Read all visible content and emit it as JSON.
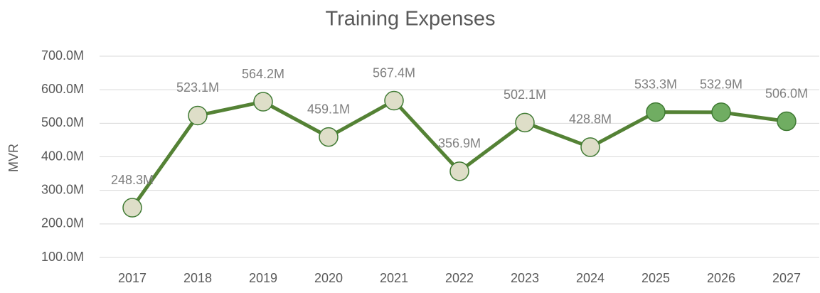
{
  "chart_data": {
    "type": "line",
    "title": "Training Expenses",
    "y_label": "MVR",
    "categories": [
      "2017",
      "2018",
      "2019",
      "2020",
      "2021",
      "2022",
      "2023",
      "2024",
      "2025",
      "2026",
      "2027"
    ],
    "series": [
      {
        "name": "Training Expenses",
        "color": "#548235",
        "values": [
          248.3,
          523.1,
          564.2,
          459.1,
          567.4,
          356.9,
          502.1,
          428.8,
          533.3,
          532.9,
          506.0
        ],
        "value_labels": [
          "248.3M",
          "523.1M",
          "564.2M",
          "459.1M",
          "567.4M",
          "356.9M",
          "502.1M",
          "428.8M",
          "533.3M",
          "532.9M",
          "506.0M"
        ],
        "marker_colors": [
          "#dedec8",
          "#dedec8",
          "#dedec8",
          "#dedec8",
          "#dedec8",
          "#dedec8",
          "#dedec8",
          "#dedec8",
          "#70ad62",
          "#70ad62",
          "#70ad62"
        ]
      }
    ],
    "ylim": [
      100,
      700
    ],
    "yticks": [
      {
        "value": 100,
        "label": "100.0M"
      },
      {
        "value": 200,
        "label": "200.0M"
      },
      {
        "value": 300,
        "label": "300.0M"
      },
      {
        "value": 400,
        "label": "400.0M"
      },
      {
        "value": 500,
        "label": "500.0M"
      },
      {
        "value": 600,
        "label": "600.0M"
      },
      {
        "value": 700,
        "label": "700.0M"
      }
    ],
    "grid": true
  }
}
